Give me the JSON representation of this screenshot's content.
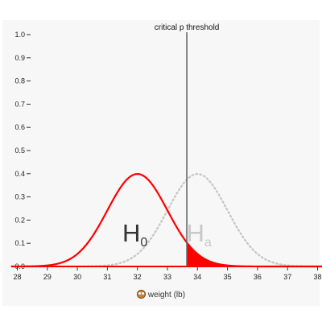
{
  "chart_data": {
    "type": "line",
    "xlabel": "weight (lb)",
    "ylabel": "",
    "xlim": [
      27.8,
      38.2
    ],
    "ylim": [
      0,
      1.0
    ],
    "x_ticks": [
      28,
      29,
      30,
      31,
      32,
      33,
      34,
      35,
      36,
      37,
      38
    ],
    "y_ticks": [
      0.0,
      0.1,
      0.2,
      0.3,
      0.4,
      0.5,
      0.6,
      0.7,
      0.8,
      0.9,
      1.0
    ],
    "grid": false,
    "series": [
      {
        "label_main": "H",
        "label_sub": "0",
        "mean": 32,
        "sd": 1,
        "color": "#ff0000",
        "style": "solid"
      },
      {
        "label_main": "H",
        "label_sub": "a",
        "mean": 34,
        "sd": 1,
        "color": "#c8c8c8",
        "style": "dotted"
      }
    ],
    "threshold": {
      "x": 33.645,
      "label": "critical p threshold",
      "color": "#666666"
    },
    "shaded_region": {
      "from": 33.645,
      "to": 38.2,
      "series": 0,
      "color": "#ff0000"
    },
    "axis_color": "#ff0000"
  },
  "icons": {
    "xlabel_icon": "owl-icon"
  }
}
